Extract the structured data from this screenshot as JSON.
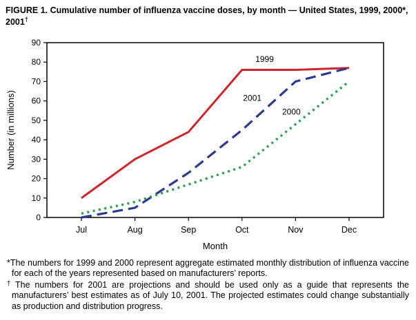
{
  "title": {
    "text": "FIGURE 1. Cumulative number of influenza vaccine doses, by month — United States, 1999, 2000*, 2001",
    "superscript": "†"
  },
  "chart_data": {
    "type": "line",
    "categories": [
      "Jul",
      "Aug",
      "Sep",
      "Oct",
      "Nov",
      "Dec"
    ],
    "series": [
      {
        "name": "1999",
        "color": "#d2232a",
        "style": "solid",
        "values": [
          10,
          30,
          44,
          76,
          76,
          77
        ]
      },
      {
        "name": "2001",
        "color": "#2b3990",
        "style": "dashed",
        "values": [
          0,
          5,
          23,
          45,
          70,
          77
        ]
      },
      {
        "name": "2000",
        "color": "#2e9e50",
        "style": "dotted",
        "values": [
          2,
          8,
          17,
          26,
          48,
          70
        ]
      }
    ],
    "title": "Cumulative number of influenza vaccine doses, by month — United States, 1999, 2000, 2001",
    "xlabel": "Month",
    "ylabel": "Number (in millions)",
    "ylim": [
      0,
      90
    ],
    "ytick_step": 10,
    "grid": false,
    "legend_position": "inline-annotations",
    "annotations": [
      {
        "text": "1999",
        "month": 3.25,
        "value": 80,
        "color": "#000000"
      },
      {
        "text": "2001",
        "month": 3.02,
        "value": 60,
        "color": "#000000"
      },
      {
        "text": "2000",
        "month": 3.75,
        "value": 53,
        "color": "#000000"
      }
    ]
  },
  "footnotes": [
    {
      "marker": "*",
      "text": "The numbers for 1999 and 2000 represent aggregate estimated monthly distribution of influenza vaccine for each of the years represented based on manufacturers’ reports."
    },
    {
      "marker": "†",
      "text": "The numbers for 2001 are projections and should be used only as a guide that represents the manufacturers’ best estimates as of July 10, 2001. The projected estimates could change substantially as production and distribution progress."
    }
  ]
}
